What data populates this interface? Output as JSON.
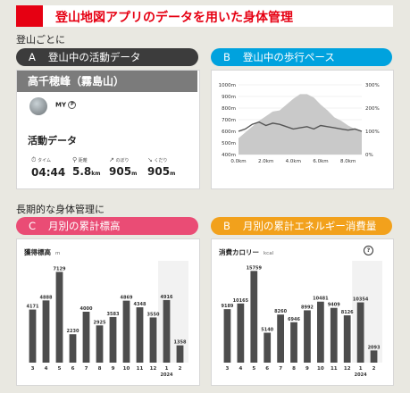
{
  "header": {
    "title": "登山地図アプリのデータを用いた身体管理"
  },
  "sections": {
    "per_climb": "登山ごとに",
    "long_term": "長期的な身体管理に"
  },
  "panels": {
    "activity": {
      "letter": "A",
      "label": "登山中の活動データ"
    },
    "pace": {
      "letter": "B",
      "label": "登山中の歩行ペース"
    },
    "elevation": {
      "letter": "C",
      "label": "月別の累計標高"
    },
    "energy": {
      "letter": "B",
      "label": "月別の累計エネルギー消費量"
    }
  },
  "activity_card": {
    "mountain": "高千穂峰（霧島山）",
    "user": "MY",
    "section_title": "活動データ",
    "stats": [
      {
        "icon": "clock-icon",
        "label": "タイム",
        "value": "04:44",
        "unit": ""
      },
      {
        "icon": "route-icon",
        "label": "距離",
        "value": "5.8",
        "unit": "km"
      },
      {
        "icon": "ascent-icon",
        "label": "のぼり",
        "value": "905",
        "unit": "m"
      },
      {
        "icon": "descent-icon",
        "label": "くだり",
        "value": "905",
        "unit": "m"
      }
    ]
  },
  "colors": {
    "accent_red": "#e60012",
    "dark": "#3c3c3c",
    "blue": "#00a2de",
    "pink": "#ea4c75",
    "orange": "#f2a11c",
    "bar": "#4d4d4d"
  },
  "chart_data": [
    {
      "type": "area",
      "xlabel": "",
      "ylabel": "",
      "x": [
        0,
        0.5,
        1,
        1.5,
        2,
        2.5,
        3,
        3.5,
        4,
        4.5,
        5,
        5.5,
        6,
        6.5,
        7,
        7.5,
        8,
        8.5,
        9
      ],
      "series": [
        {
          "name": "",
          "axis": "left",
          "values": [
            540,
            590,
            640,
            690,
            730,
            770,
            780,
            830,
            880,
            920,
            920,
            890,
            830,
            780,
            720,
            690,
            650,
            620,
            600
          ]
        },
        {
          "name": "",
          "axis": "right",
          "style": "line",
          "values": [
            100,
            110,
            130,
            140,
            125,
            135,
            130,
            120,
            110,
            115,
            120,
            110,
            125,
            120,
            115,
            110,
            105,
            110,
            100
          ]
        }
      ],
      "x_ticks": [
        "0.0km",
        "2.0km",
        "4.0km",
        "6.0km",
        "8.0km"
      ],
      "y_ticks_left": [
        "1000m",
        "900m",
        "800m",
        "700m",
        "600m",
        "500m",
        "400m"
      ],
      "y_ticks_right": [
        "300%",
        "200%",
        "100%",
        "0%"
      ],
      "ylim": [
        400,
        1000
      ],
      "y2lim": [
        0,
        300
      ]
    },
    {
      "type": "bar",
      "title": "獲得標高",
      "unit": "m",
      "categories": [
        "3",
        "4",
        "5",
        "6",
        "7",
        "8",
        "9",
        "10",
        "11",
        "12",
        "1",
        "2"
      ],
      "year_label": "2024",
      "values": [
        4171,
        4888,
        7129,
        2230,
        4000,
        2925,
        3583,
        4869,
        4348,
        3550,
        4916,
        1358
      ]
    },
    {
      "type": "bar",
      "title": "消費カロリー",
      "unit": "kcal",
      "categories": [
        "3",
        "4",
        "5",
        "6",
        "7",
        "8",
        "9",
        "10",
        "11",
        "12",
        "1",
        "2"
      ],
      "year_label": "2024",
      "values": [
        9189,
        10165,
        15759,
        5140,
        8260,
        6946,
        8992,
        10481,
        9409,
        8126,
        10354,
        2093
      ]
    }
  ]
}
